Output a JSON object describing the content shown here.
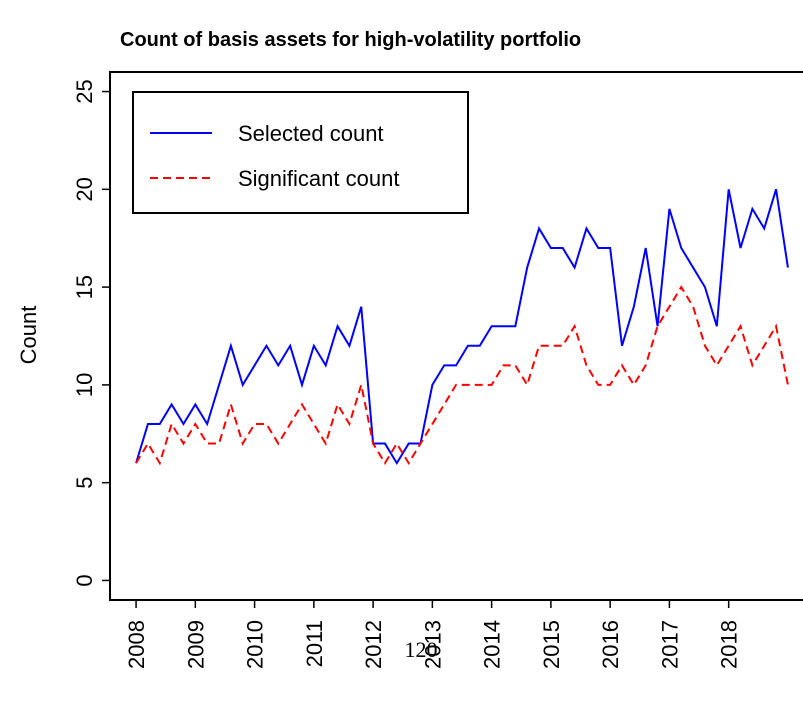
{
  "chart_data": {
    "type": "line",
    "title": "Count of basis assets for high-volatility portfolio",
    "y_label": "Count",
    "x": [
      2008.0,
      2008.2,
      2008.4,
      2008.6,
      2008.8,
      2009.0,
      2009.2,
      2009.4,
      2009.6,
      2009.8,
      2010.0,
      2010.2,
      2010.4,
      2010.6,
      2010.8,
      2011.0,
      2011.2,
      2011.4,
      2011.6,
      2011.8,
      2012.0,
      2012.2,
      2012.4,
      2012.6,
      2012.8,
      2013.0,
      2013.2,
      2013.4,
      2013.6,
      2013.8,
      2014.0,
      2014.2,
      2014.4,
      2014.6,
      2014.8,
      2015.0,
      2015.2,
      2015.4,
      2015.6,
      2015.8,
      2016.0,
      2016.2,
      2016.4,
      2016.6,
      2016.8,
      2017.0,
      2017.2,
      2017.4,
      2017.6,
      2017.8,
      2018.0,
      2018.2,
      2018.4,
      2018.6,
      2018.8,
      2019.0
    ],
    "series": [
      {
        "name": "Selected count",
        "color": "#0000ff",
        "dash": "solid",
        "values": [
          6,
          8,
          8,
          9,
          8,
          9,
          8,
          10,
          12,
          10,
          11,
          12,
          11,
          12,
          10,
          12,
          11,
          13,
          12,
          14,
          7,
          7,
          6,
          7,
          7,
          10,
          11,
          11,
          12,
          12,
          13,
          13,
          13,
          16,
          18,
          17,
          17,
          16,
          18,
          17,
          17,
          12,
          14,
          17,
          13,
          19,
          17,
          16,
          15,
          13,
          20,
          17,
          19,
          18,
          20,
          16
        ]
      },
      {
        "name": "Significant count",
        "color": "#ff0000",
        "dash": "dashed",
        "values": [
          6,
          7,
          6,
          8,
          7,
          8,
          7,
          7,
          9,
          7,
          8,
          8,
          7,
          8,
          9,
          8,
          7,
          9,
          8,
          10,
          7,
          6,
          7,
          6,
          7,
          8,
          9,
          10,
          10,
          10,
          10,
          11,
          11,
          10,
          12,
          12,
          12,
          13,
          11,
          10,
          10,
          11,
          10,
          11,
          13,
          14,
          15,
          14,
          12,
          11,
          12,
          13,
          11,
          12,
          13,
          10
        ]
      }
    ],
    "xlim": [
      2007.56,
      2019.44
    ],
    "ylim": [
      -1,
      26
    ],
    "xticks": [
      2008,
      2009,
      2010,
      2011,
      2012,
      2013,
      2014,
      2015,
      2016,
      2017,
      2018
    ],
    "yticks": [
      0,
      5,
      10,
      15,
      20,
      25
    ],
    "legend": "top-left"
  },
  "page_number": "120"
}
